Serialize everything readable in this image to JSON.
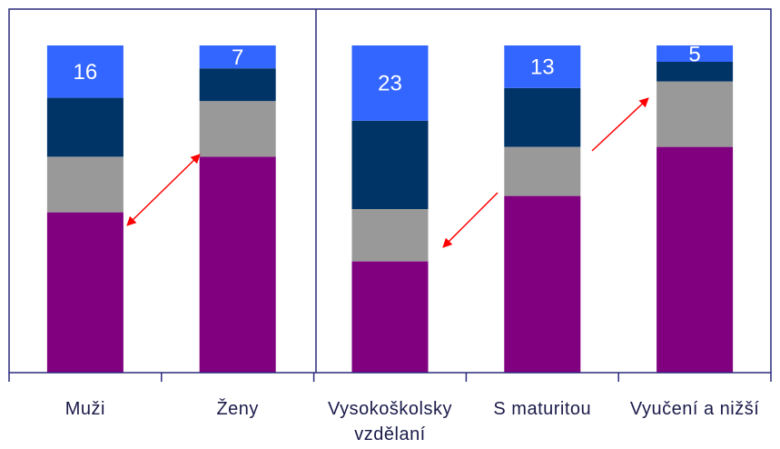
{
  "chart_data": {
    "type": "stacked_bar",
    "categories": [
      "Muži",
      "Ženy",
      "Vysokoškolsky vzdělaní",
      "S maturitou",
      "Vyučení a nižší"
    ],
    "series": [
      {
        "color": "#800080",
        "values": [
          49,
          66,
          34,
          54,
          69
        ]
      },
      {
        "color": "#999999",
        "values": [
          17,
          17,
          16,
          15,
          20
        ]
      },
      {
        "color": "#003366",
        "values": [
          18,
          10,
          27,
          18,
          6
        ]
      },
      {
        "color": "#3366ff",
        "values": [
          16,
          7,
          23,
          13,
          5
        ],
        "show_labels": true
      }
    ],
    "ylim": [
      0,
      100
    ]
  }
}
